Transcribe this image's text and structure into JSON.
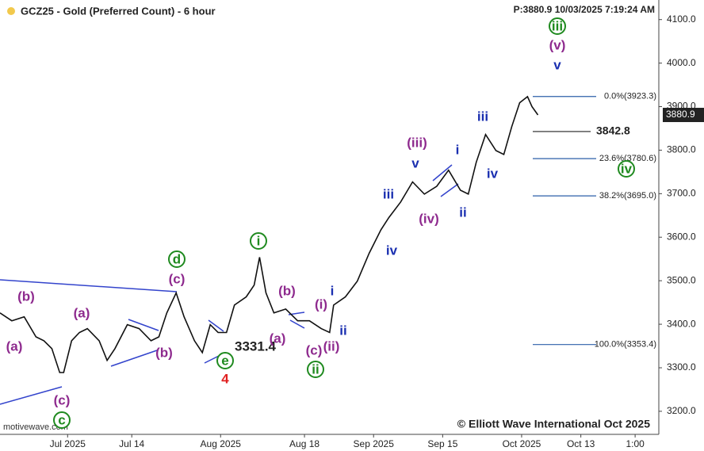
{
  "chart_data": {
    "type": "line",
    "title": "GCZ25 - Gold (Preferred Count) - 6 hour",
    "info": "P:3880.9  10/03/2025 7:19:24 AM",
    "credit": "© Elliott Wave International Oct 2025",
    "source": "motivewave.com",
    "color": "#111111",
    "xlim": [
      -13.7,
      119.8
    ],
    "xticks": [
      {
        "value": 0,
        "label": "Jul 2025"
      },
      {
        "value": 13,
        "label": "Jul 14"
      },
      {
        "value": 31,
        "label": "Aug 2025"
      },
      {
        "value": 48,
        "label": "Aug 18"
      },
      {
        "value": 62,
        "label": "Sep 2025"
      },
      {
        "value": 76,
        "label": "Sep 15"
      },
      {
        "value": 92,
        "label": "Oct 2025"
      },
      {
        "value": 104,
        "label": "Oct 13"
      },
      {
        "value": 115,
        "label": "1:00"
      }
    ],
    "ylim": [
      3147,
      4145
    ],
    "yticks": [
      {
        "value": 3200,
        "label": "3200.0"
      },
      {
        "value": 3300,
        "label": "3300.0"
      },
      {
        "value": 3400,
        "label": "3400.0"
      },
      {
        "value": 3500,
        "label": "3500.0"
      },
      {
        "value": 3600,
        "label": "3600.0"
      },
      {
        "value": 3700,
        "label": "3700.0"
      },
      {
        "value": 3800,
        "label": "3800.0"
      },
      {
        "value": 3900,
        "label": "3900.0"
      },
      {
        "value": 4000,
        "label": "4000.0"
      },
      {
        "value": 4100,
        "label": "4100.0"
      }
    ],
    "x": [
      -13.7,
      -11.3,
      -8.8,
      -6.4,
      -4.8,
      -3.2,
      -1.6,
      -0.8,
      0.8,
      2.4,
      4.0,
      6.4,
      8.0,
      9.6,
      12.1,
      14.5,
      16.9,
      18.5,
      20.1,
      22.0,
      23.6,
      25.7,
      27.3,
      28.9,
      30.5,
      32.2,
      33.8,
      36.2,
      37.8,
      38.9,
      40.2,
      41.8,
      44.2,
      46.6,
      49.0,
      51.4,
      53.1,
      53.9,
      56.3,
      58.7,
      61.1,
      63.5,
      65.1,
      67.5,
      69.9,
      72.3,
      74.8,
      77.2,
      79.6,
      81.2,
      82.8,
      84.7,
      86.8,
      88.4,
      90.0,
      91.6,
      93.2,
      94.1,
      95.3
    ],
    "values": [
      3426,
      3408,
      3417,
      3371,
      3362,
      3344,
      3289,
      3289,
      3362,
      3381,
      3390,
      3362,
      3317,
      3344,
      3399,
      3390,
      3362,
      3371,
      3426,
      3472,
      3417,
      3362,
      3335,
      3399,
      3381,
      3381,
      3444,
      3463,
      3490,
      3554,
      3472,
      3426,
      3435,
      3408,
      3408,
      3390,
      3381,
      3444,
      3463,
      3499,
      3563,
      3617,
      3645,
      3681,
      3727,
      3699,
      3717,
      3754,
      3708,
      3699,
      3772,
      3836,
      3799,
      3790,
      3854,
      3909,
      3923,
      3900,
      3881
    ],
    "last_price": {
      "value": 3880.9,
      "label": "3880.9"
    },
    "levels": [
      {
        "value": 3923.3,
        "label": "0.0%(3923.3)"
      },
      {
        "value": 3780.6,
        "label": "23.6%(3780.6)"
      },
      {
        "value": 3695.0,
        "label": "38.2%(3695.0)"
      },
      {
        "value": 3353.4,
        "label": "100.0%(3353.4)"
      },
      {
        "value": 3842.8,
        "label": "3842.8"
      }
    ],
    "annotations": [
      {
        "text": "(b)",
        "color": "#8e2a8e"
      },
      {
        "text": "(a)",
        "color": "#8e2a8e"
      },
      {
        "text": "(c)",
        "color": "#8e2a8e"
      },
      {
        "text": "c",
        "color": "#1f8a1f",
        "circled": true
      },
      {
        "text": "(a)",
        "color": "#8e2a8e"
      },
      {
        "text": "(b)",
        "color": "#8e2a8e"
      },
      {
        "text": "d",
        "color": "#1f8a1f",
        "circled": true
      },
      {
        "text": "(c)",
        "color": "#8e2a8e"
      },
      {
        "text": "e",
        "color": "#1f8a1f",
        "circled": true
      },
      {
        "text": "4",
        "color": "#e02020"
      },
      {
        "text": "3331.4",
        "color": "#222222"
      },
      {
        "text": "i",
        "color": "#1f8a1f",
        "circled": true
      },
      {
        "text": "(b)",
        "color": "#8e2a8e"
      },
      {
        "text": "(a)",
        "color": "#8e2a8e"
      },
      {
        "text": "(i)",
        "color": "#8e2a8e"
      },
      {
        "text": "i",
        "color": "#1a2fb0"
      },
      {
        "text": "ii",
        "color": "#1a2fb0"
      },
      {
        "text": "(c)",
        "color": "#8e2a8e"
      },
      {
        "text": "(ii)",
        "color": "#8e2a8e"
      },
      {
        "text": "ii",
        "color": "#1f8a1f",
        "circled": true
      },
      {
        "text": "iv",
        "color": "#1a2fb0"
      },
      {
        "text": "iii",
        "color": "#1a2fb0"
      },
      {
        "text": "v",
        "color": "#1a2fb0"
      },
      {
        "text": "(iii)",
        "color": "#8e2a8e"
      },
      {
        "text": "(iv)",
        "color": "#8e2a8e"
      },
      {
        "text": "i",
        "color": "#1a2fb0"
      },
      {
        "text": "ii",
        "color": "#1a2fb0"
      },
      {
        "text": "iii",
        "color": "#1a2fb0"
      },
      {
        "text": "iv",
        "color": "#1a2fb0"
      },
      {
        "text": "iv",
        "color": "#1f8a1f",
        "circled": true
      },
      {
        "text": "iii",
        "color": "#1f8a1f",
        "circled": true
      },
      {
        "text": "(v)",
        "color": "#8e2a8e"
      },
      {
        "text": "v",
        "color": "#1a2fb0"
      }
    ]
  }
}
